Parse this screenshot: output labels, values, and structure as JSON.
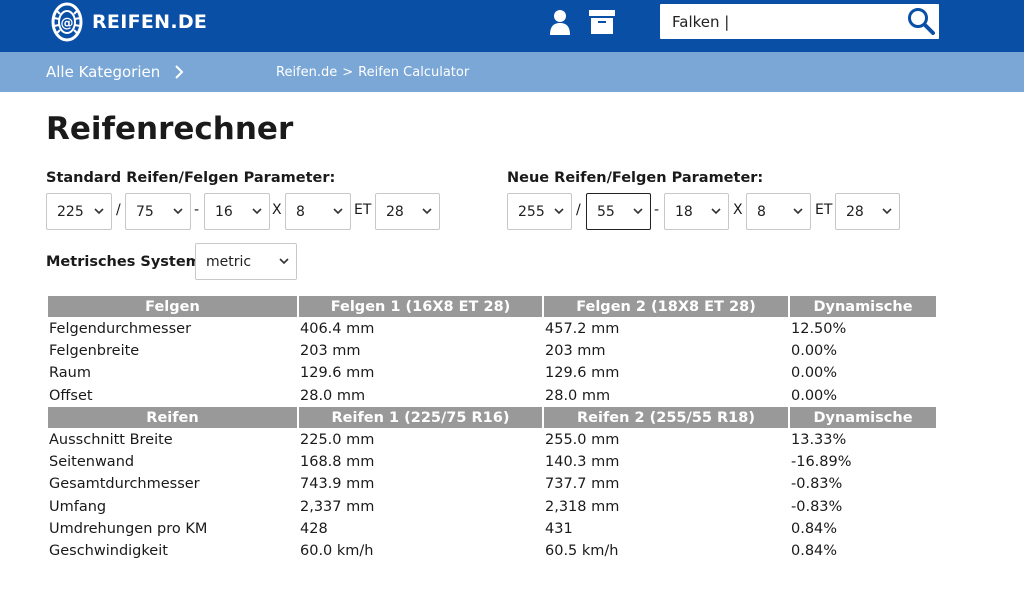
{
  "header": {
    "logo_text": "REIFEN.DE",
    "search_value": "Falken |",
    "brand_color": "#0a4fa6"
  },
  "catbar": {
    "all_categories": "Alle Kategorien",
    "breadcrumb": [
      "Reifen.de",
      "Reifen Calculator"
    ],
    "breadcrumb_sep": ">"
  },
  "page_title": "Reifenrechner",
  "standard": {
    "label": "Standard Reifen/Felgen Parameter:",
    "width": "225",
    "ratio": "75",
    "rim": "16",
    "rim_width": "8",
    "et": "28"
  },
  "neu": {
    "label": "Neue Reifen/Felgen Parameter:",
    "width": "255",
    "ratio": "55",
    "rim": "18",
    "rim_width": "8",
    "et": "28"
  },
  "separators": {
    "slash": "/",
    "dash": "-",
    "x": "X",
    "et": "ET"
  },
  "metric": {
    "label": "Metrisches System:",
    "value": "metric"
  },
  "table": {
    "felgen_header": [
      "Felgen",
      "Felgen 1 (16X8 ET 28)",
      "Felgen 2 (18X8 ET 28)",
      "Dynamische"
    ],
    "felgen_rows": [
      [
        "Felgendurchmesser",
        "406.4 mm",
        "457.2 mm",
        "12.50%"
      ],
      [
        "Felgenbreite",
        "203 mm",
        "203 mm",
        "0.00%"
      ],
      [
        "Raum",
        "129.6 mm",
        "129.6 mm",
        "0.00%"
      ],
      [
        "Offset",
        "28.0 mm",
        "28.0 mm",
        "0.00%"
      ]
    ],
    "reifen_header": [
      "Reifen",
      "Reifen 1 (225/75 R16)",
      "Reifen 2 (255/55 R18)",
      "Dynamische"
    ],
    "reifen_rows": [
      [
        "Ausschnitt Breite",
        "225.0 mm",
        "255.0 mm",
        "13.33%"
      ],
      [
        "Seitenwand",
        "168.8 mm",
        "140.3 mm",
        "-16.89%"
      ],
      [
        "Gesamtdurchmesser",
        "743.9 mm",
        "737.7 mm",
        "-0.83%"
      ],
      [
        "Umfang",
        "2,337 mm",
        "2,318 mm",
        "-0.83%"
      ],
      [
        "Umdrehungen pro KM",
        "428",
        "431",
        "0.84%"
      ],
      [
        "Geschwindigkeit",
        "60.0 km/h",
        "60.5 km/h",
        "0.84%"
      ]
    ]
  }
}
